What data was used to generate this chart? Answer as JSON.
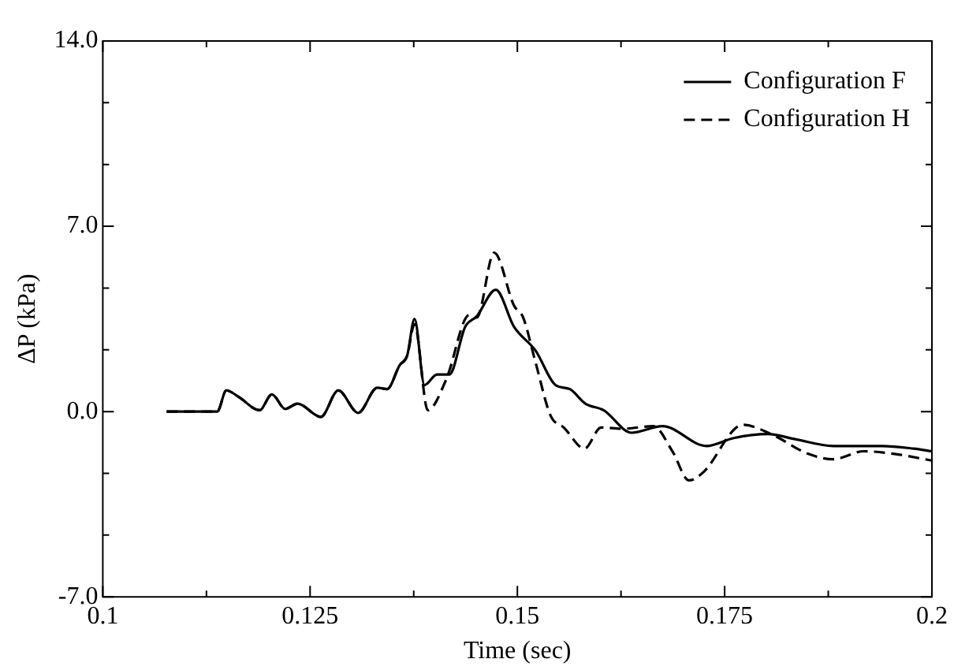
{
  "chart_data": {
    "type": "line",
    "xlabel": "Time (sec)",
    "ylabel": "ΔP (kPa)",
    "xlim": [
      0.1,
      0.2
    ],
    "xticks": [
      0.1,
      {
        "value": 0.1125,
        "label": null
      },
      0.125,
      {
        "value": 0.1375,
        "label": null
      },
      0.15,
      {
        "value": 0.1625,
        "label": null
      },
      0.175,
      {
        "value": 0.1875,
        "label": null
      },
      0.2
    ],
    "ylim": [
      -7,
      14
    ],
    "yticks": [
      {
        "value": -7,
        "label": "-7.0"
      },
      {
        "value": -4.667,
        "label": null
      },
      {
        "value": -2.333,
        "label": null
      },
      {
        "value": 0,
        "label": "0.0"
      },
      {
        "value": 2.333,
        "label": null
      },
      {
        "value": 4.667,
        "label": null
      },
      {
        "value": 7,
        "label": "7.0"
      },
      {
        "value": 9.333,
        "label": null
      },
      {
        "value": 11.667,
        "label": null
      },
      {
        "value": 14,
        "label": "14.0"
      }
    ],
    "legend": "top right",
    "grid": false,
    "marker": "none",
    "series": [
      {
        "name": "Configuration F",
        "color": "#000000",
        "line_style": "solid",
        "x": [
          0.1077,
          0.1138,
          0.1149,
          0.1164,
          0.1189,
          0.1204,
          0.122,
          0.1235,
          0.1263,
          0.1284,
          0.1308,
          0.1331,
          0.1343,
          0.1358,
          0.1367,
          0.1376,
          0.1388,
          0.1403,
          0.1418,
          0.1437,
          0.1451,
          0.1474,
          0.1496,
          0.1522,
          0.1546,
          0.1563,
          0.1582,
          0.1604,
          0.1638,
          0.1675,
          0.1728,
          0.1761,
          0.1802,
          0.1836,
          0.1881,
          0.194,
          0.1978,
          0.2
        ],
        "values": [
          0,
          0,
          0.8,
          0.55,
          0.05,
          0.65,
          0.1,
          0.3,
          -0.2,
          0.8,
          -0.05,
          0.9,
          0.85,
          1.75,
          2.1,
          3.5,
          1.0,
          1.4,
          1.4,
          3.2,
          3.6,
          4.6,
          3.2,
          2.3,
          1.0,
          0.85,
          0.3,
          0.05,
          -0.8,
          -0.55,
          -1.3,
          -1.0,
          -0.85,
          -1.05,
          -1.3,
          -1.3,
          -1.4,
          -1.5
        ]
      },
      {
        "name": "Configuration H",
        "color": "#000000",
        "line_style": "dashed",
        "x": [
          0.1077,
          0.1138,
          0.1149,
          0.1164,
          0.1189,
          0.1204,
          0.122,
          0.1235,
          0.1263,
          0.1284,
          0.1308,
          0.1331,
          0.1343,
          0.1358,
          0.1367,
          0.1376,
          0.1392,
          0.1414,
          0.1442,
          0.1451,
          0.1472,
          0.1496,
          0.1507,
          0.1522,
          0.154,
          0.1556,
          0.1581,
          0.1601,
          0.1627,
          0.1664,
          0.1687,
          0.1707,
          0.1724,
          0.1772,
          0.1806,
          0.1851,
          0.1881,
          0.1918,
          0.1955,
          0.2
        ],
        "values": [
          0,
          0,
          0.8,
          0.55,
          0.05,
          0.65,
          0.1,
          0.3,
          -0.2,
          0.8,
          -0.05,
          0.9,
          0.85,
          1.75,
          2.1,
          3.3,
          0.05,
          1.2,
          3.65,
          3.55,
          6.0,
          4.0,
          3.55,
          1.85,
          -0.15,
          -0.6,
          -1.4,
          -0.6,
          -0.65,
          -0.55,
          -1.5,
          -2.6,
          -2.3,
          -0.5,
          -0.85,
          -1.6,
          -1.8,
          -1.5,
          -1.6,
          -1.85
        ]
      }
    ]
  }
}
